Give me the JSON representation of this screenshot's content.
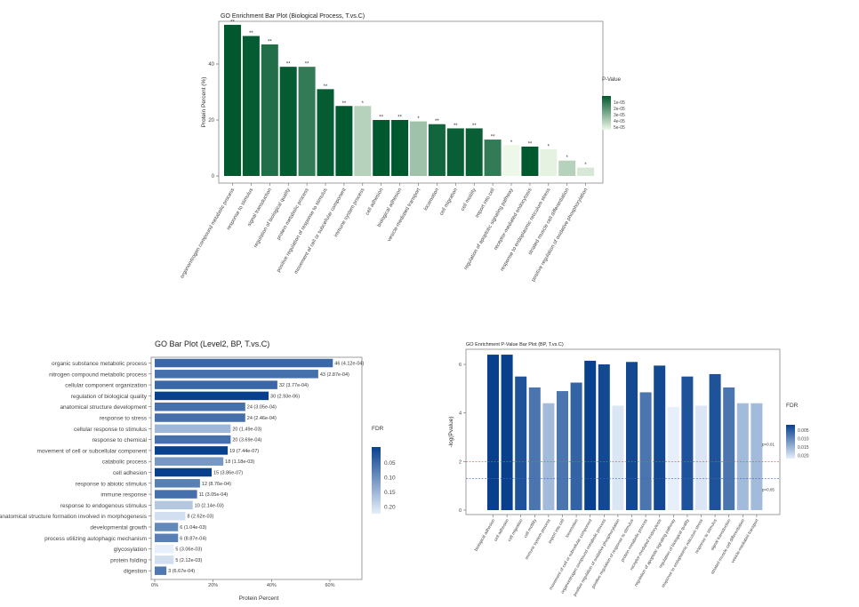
{
  "chart_data": [
    {
      "type": "bar",
      "title": "GO Enrichment Bar Plot (Biological Process, T.vs.C)",
      "xlabel": "",
      "ylabel": "Protein Percent (%)",
      "ylim": [
        0,
        55
      ],
      "yticks": [
        "0",
        "20",
        "40"
      ],
      "legend": {
        "title": "P-Value",
        "position": "right",
        "ticks": [
          "1e-05",
          "2e-05",
          "3e-05",
          "4e-05",
          "5e-05"
        ]
      },
      "categories": [
        "organonitrogen compound metabolic process",
        "response to stimulus",
        "signal transduction",
        "regulation of biological quality",
        "protein metabolic process",
        "positive regulation of response to stimulus",
        "movement of cell or subcellular component",
        "immune system process",
        "cell adhesion",
        "biological adhesion",
        "vesicle-mediated transport",
        "locomotion",
        "cell migration",
        "cell motility",
        "import into cell",
        "regulation of apoptotic signaling pathway",
        "receptor-mediated endocytosis",
        "response to endoplasmic reticulum stress",
        "striated muscle cell differentiation",
        "positive regulation of oxidative phosphorylation"
      ],
      "values": [
        54,
        50,
        47,
        39,
        39,
        31,
        25,
        25,
        20,
        20,
        19.5,
        18.5,
        17,
        17,
        13,
        11,
        10.5,
        9.5,
        5.5,
        3
      ],
      "pvalues": [
        1e-06,
        2e-06,
        8e-06,
        2e-06,
        1.2e-05,
        2e-06,
        1e-06,
        4e-05,
        1e-06,
        1e-06,
        3.5e-05,
        5e-06,
        3e-06,
        3e-06,
        1.2e-05,
        5.2e-05,
        1e-06,
        5e-05,
        4e-05,
        4.7e-05
      ],
      "stars": [
        "**",
        "**",
        "**",
        "**",
        "**",
        "**",
        "**",
        "*",
        "**",
        "**",
        "*",
        "**",
        "**",
        "**",
        "**",
        "*",
        "**",
        "*",
        "*",
        "*"
      ]
    },
    {
      "type": "bar",
      "orientation": "horizontal",
      "title": "GO Bar Plot (Level2, BP, T.vs.C)",
      "xlabel": "Protein Percent",
      "ylabel": "",
      "xlim": [
        0,
        0.72
      ],
      "xticks": [
        "0%",
        "20%",
        "40%",
        "60%"
      ],
      "legend": {
        "title": "FDR",
        "position": "right",
        "ticks": [
          "0.05",
          "0.10",
          "0.15",
          "0.20"
        ]
      },
      "categories": [
        "organic substance metabolic process",
        "nitrogen compound metabolic process",
        "cellular component organization",
        "regulation of biological quality",
        "anatomical structure development",
        "response to stress",
        "cellular response to stimulus",
        "response to chemical",
        "movement of cell or subcellular component",
        "catabolic process",
        "cell adhesion",
        "response to abiotic stimulus",
        "immune response",
        "response to endogenous stimulus",
        "anatomical structure formation involved in morphogenesis",
        "developmental growth",
        "process utilizing autophagic mechanism",
        "glycosylation",
        "protein folding",
        "digestion"
      ],
      "values": [
        0.61,
        0.56,
        0.42,
        0.39,
        0.31,
        0.31,
        0.26,
        0.26,
        0.25,
        0.235,
        0.195,
        0.155,
        0.145,
        0.13,
        0.105,
        0.08,
        0.08,
        0.065,
        0.065,
        0.04
      ],
      "fdr": [
        0.06,
        0.07,
        0.06,
        0.01,
        0.07,
        0.07,
        0.16,
        0.07,
        0.01,
        0.12,
        0.01,
        0.09,
        0.07,
        0.18,
        0.21,
        0.1,
        0.09,
        0.23,
        0.21,
        0.08
      ],
      "data_labels": [
        "46 (4.12e-04)",
        "43 (2.87e-04)",
        "32 (3.77e-04)",
        "30 (2.93e-06)",
        "24 (3.05e-04)",
        "24 (2.46e-04)",
        "20 (1.49e-03)",
        "20 (3.69e-04)",
        "19 (7.44e-07)",
        "18 (1.18e-03)",
        "15 (3.86e-07)",
        "12 (8.76e-04)",
        "11 (3.05e-04)",
        "10 (2.14e-03)",
        "8 (2.62e-03)",
        "6 (1.04e-03)",
        "6 (8.87e-04)",
        "5 (3.06e-03)",
        "5 (2.12e-03)",
        "3 (6.67e-04)"
      ]
    },
    {
      "type": "bar",
      "title": "GO Enrichment P-Value Bar Plot (BP, T.vs.C)",
      "xlabel": "",
      "ylabel": "-log(Pvalue)",
      "ylim": [
        0,
        6.5
      ],
      "yticks": [
        "0",
        "2",
        "4",
        "6"
      ],
      "legend": {
        "title": "FDR",
        "position": "right",
        "ticks": [
          "0.005",
          "0.010",
          "0.015",
          "0.020"
        ]
      },
      "reference_lines": [
        {
          "value": 2,
          "label": "p<0.01",
          "color": "#e05050"
        },
        {
          "value": 1.3,
          "label": "p<0.05",
          "color": "#4466bb"
        }
      ],
      "categories": [
        "biological adhesion",
        "cell adhesion",
        "cell migration",
        "cell motility",
        "immune system process",
        "import into cell",
        "locomotion",
        "movement of cell or subcellular component",
        "organonitrogen compound metabolic process",
        "positive regulation of oxidative phosphorylation",
        "positive regulation of response to stimulus",
        "protein metabolic process",
        "receptor-mediated endocytosis",
        "regulation of apoptotic signaling pathway",
        "regulation of biological quality",
        "response to endoplasmic reticulum stress",
        "response to stimulus",
        "signal transduction",
        "striated muscle cell differentiation",
        "vesicle-mediated transport"
      ],
      "values": [
        6.4,
        6.4,
        5.5,
        5.05,
        4.4,
        4.9,
        5.25,
        6.15,
        6.0,
        4.3,
        6.1,
        4.85,
        5.95,
        4.25,
        5.5,
        4.3,
        5.6,
        5.05,
        4.4,
        4.4
      ],
      "fdr": [
        0.002,
        0.002,
        0.004,
        0.008,
        0.016,
        0.008,
        0.006,
        0.002,
        0.003,
        0.021,
        0.003,
        0.008,
        0.003,
        0.022,
        0.004,
        0.021,
        0.004,
        0.008,
        0.016,
        0.016
      ]
    }
  ]
}
